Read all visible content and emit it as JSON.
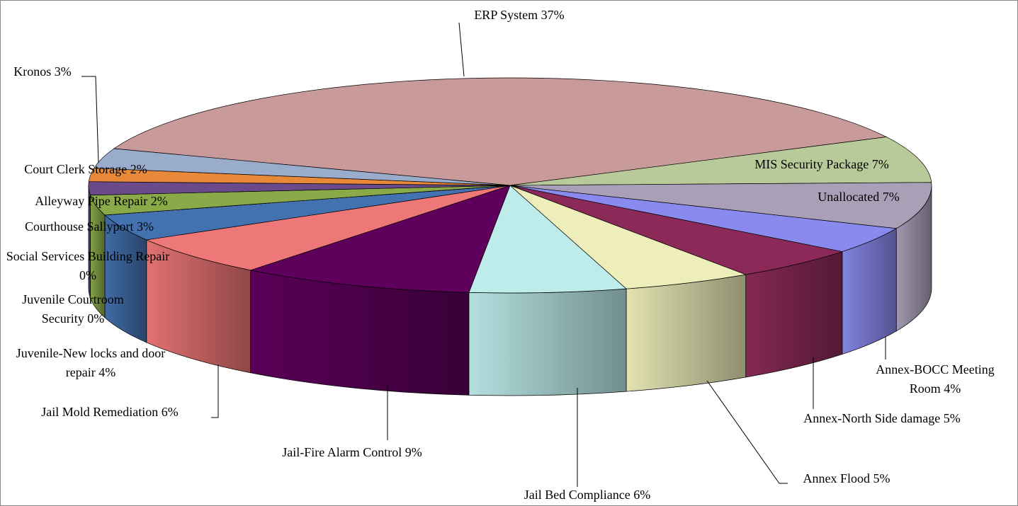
{
  "chart_data": {
    "type": "pie3d",
    "categories": [
      "ERP System",
      "MIS Security Package",
      "Unallocated",
      "Annex-BOCC Meeting Room",
      "Annex-North Side damage",
      "Annex Flood",
      "Jail Bed Compliance",
      "Jail-Fire Alarm Control",
      "Jail Mold Remediation",
      "Juvenile-New locks and door repair",
      "Juvenile Courtroom Security",
      "Social Services Building Repair",
      "Courthouse Sallyport",
      "Alleyway Pipe Repair",
      "Court Clerk Storage",
      "Kronos "
    ],
    "values": [
      37,
      7,
      7,
      4,
      5,
      5,
      6,
      9,
      6,
      4,
      0,
      0,
      3,
      2,
      2,
      3
    ],
    "value_labels": [
      "37%",
      "7%",
      "7%",
      "4%",
      "5%",
      "5%",
      "6%",
      "9%",
      "6%",
      "4%",
      "0%",
      "0%",
      "3%",
      "2%",
      "2%",
      "3%"
    ],
    "colors": [
      "#c99a9a",
      "#b8c99a",
      "#a9a0b8",
      "#8a8aee",
      "#8b2a58",
      "#eeeebb",
      "#bdeceb",
      "#5e005c",
      "#ee7777",
      "#4472b0",
      "#e07030",
      "#c04040",
      "#8aaa4a",
      "#6a4a8a",
      "#e8893a",
      "#9aaccc"
    ]
  }
}
